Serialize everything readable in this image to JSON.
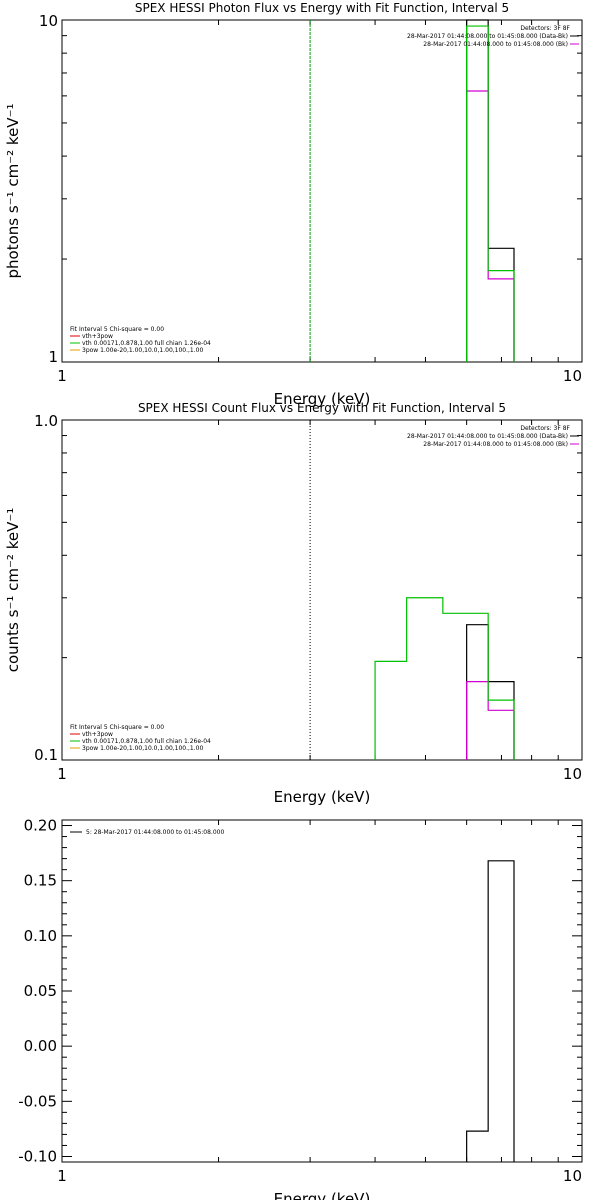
{
  "chart_data": [
    {
      "type": "line",
      "title": "SPEX HESSI Photon Flux vs Energy with Fit Function, Interval 5",
      "xlabel": "Energy (keV)",
      "ylabel": "photons s⁻¹ cm⁻² keV⁻¹",
      "xscale": "log",
      "yscale": "log",
      "xlim": [
        1,
        10
      ],
      "ylim": [
        1,
        10
      ],
      "xticks": [
        "1",
        "10"
      ],
      "yticks": [
        "1",
        "10"
      ],
      "legend_top_right": {
        "header": "Detectors: 3F 8F",
        "entries": [
          {
            "text": "28-Mar-2017 01:44:08.000 to 01:45:08.000 (Data-Bk)",
            "color": "#000000"
          },
          {
            "text": "28-Mar-2017 01:44:08.000 to 01:45:08.000 (Bk)",
            "color": "#d000d0"
          }
        ]
      },
      "legend_bottom_left": {
        "header": "Fit Interval 5   Chi-square = 0.00",
        "entries": [
          {
            "text": "vth+3pow",
            "color": "#e00000"
          },
          {
            "text": "vth 0.00171,0.878,1.00  full chian 1.26e-04",
            "color": "#00c000"
          },
          {
            "text": "3pow 1.00e-20,1.00,10.0,1.00,100.,1.00",
            "color": "#e0a000"
          }
        ]
      },
      "vline": {
        "x": 3.0,
        "color": "#00a000",
        "style": "dashed"
      },
      "series": [
        {
          "color": "#000000",
          "steps": [
            {
              "x0": 6.0,
              "x1": 6.6,
              "y": 10.0
            },
            {
              "x0": 6.6,
              "x1": 7.4,
              "y": 2.15
            }
          ]
        },
        {
          "color": "#d000d0",
          "steps": [
            {
              "x0": 6.0,
              "x1": 6.6,
              "y": 6.2
            },
            {
              "x0": 6.6,
              "x1": 7.4,
              "y": 1.75
            }
          ]
        },
        {
          "color": "#00c000",
          "steps": [
            {
              "x0": 6.0,
              "x1": 6.6,
              "y": 9.6
            },
            {
              "x0": 6.6,
              "x1": 7.4,
              "y": 1.85
            },
            {
              "x0": 7.4,
              "x1": 7.4,
              "y": 1.0
            }
          ]
        }
      ]
    },
    {
      "type": "line",
      "title": "SPEX HESSI Count Flux vs Energy with Fit Function, Interval 5",
      "xlabel": "Energy (keV)",
      "ylabel": "counts s⁻¹ cm⁻² keV⁻¹",
      "xscale": "log",
      "yscale": "log",
      "xlim": [
        1,
        10
      ],
      "ylim": [
        0.1,
        1.0
      ],
      "xticks": [
        "1",
        "10"
      ],
      "yticks": [
        "0.1",
        "1.0"
      ],
      "legend_top_right": {
        "header": "Detectors: 3F 8F",
        "entries": [
          {
            "text": "28-Mar-2017 01:44:08.000 to 01:45:08.000 (Data-Bk)",
            "color": "#000000"
          },
          {
            "text": "28-Mar-2017 01:44:08.000 to 01:45:08.000 (Bk)",
            "color": "#d000d0"
          }
        ]
      },
      "legend_bottom_left": {
        "header": "Fit Interval 5   Chi-square = 0.00",
        "entries": [
          {
            "text": "vth+3pow",
            "color": "#e00000"
          },
          {
            "text": "vth 0.00171,0.878,1.00  full chian 1.26e-04",
            "color": "#00c000"
          },
          {
            "text": "3pow 1.00e-20,1.00,10.0,1.00,100.,1.00",
            "color": "#e0a000"
          }
        ]
      },
      "vline": {
        "x": 3.0,
        "color": "#000000",
        "style": "dotted"
      },
      "series": [
        {
          "color": "#000000",
          "steps": [
            {
              "x0": 6.0,
              "x1": 6.6,
              "y": 0.25
            },
            {
              "x0": 6.6,
              "x1": 7.4,
              "y": 0.17
            }
          ]
        },
        {
          "color": "#d000d0",
          "steps": [
            {
              "x0": 6.0,
              "x1": 6.6,
              "y": 0.17
            },
            {
              "x0": 6.6,
              "x1": 7.4,
              "y": 0.14
            }
          ]
        },
        {
          "color": "#00c000",
          "steps": [
            {
              "x0": 4.0,
              "x1": 4.6,
              "y": 0.195
            },
            {
              "x0": 4.6,
              "x1": 5.4,
              "y": 0.3
            },
            {
              "x0": 5.4,
              "x1": 6.0,
              "y": 0.27
            },
            {
              "x0": 6.0,
              "x1": 6.6,
              "y": 0.27
            },
            {
              "x0": 6.6,
              "x1": 7.4,
              "y": 0.15
            }
          ]
        }
      ]
    },
    {
      "type": "line",
      "title": "",
      "xlabel": "Energy (keV)",
      "ylabel": "",
      "xscale": "log",
      "yscale": "linear",
      "xlim": [
        1,
        10
      ],
      "ylim": [
        -0.105,
        0.205
      ],
      "xticks": [
        "1",
        "10"
      ],
      "yticks": [
        "0.20",
        "0.15",
        "0.10",
        "0.05",
        "0.00",
        "-0.05",
        "-0.10"
      ],
      "legend": {
        "text": "5: 28-Mar-2017 01:44:08.000 to 01:45:08.000",
        "color": "#000000"
      },
      "series": [
        {
          "color": "#000000",
          "steps": [
            {
              "x0": 6.0,
              "x1": 6.6,
              "y": -0.077
            },
            {
              "x0": 6.6,
              "x1": 7.4,
              "y": 0.168
            }
          ]
        }
      ]
    }
  ]
}
